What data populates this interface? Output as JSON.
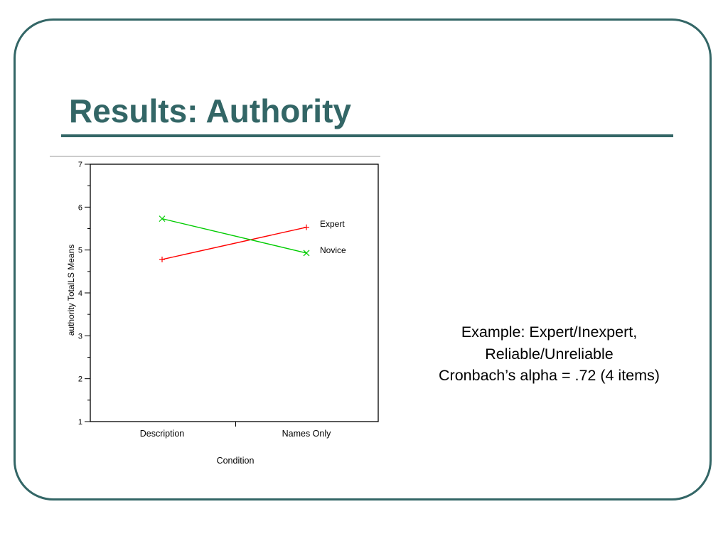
{
  "slide": {
    "title": "Results: Authority",
    "notes": [
      "Example: Expert/Inexpert,",
      "Reliable/Unreliable",
      "Cronbach’s alpha = .72 (4 items)"
    ],
    "colors": {
      "accent": "#336666",
      "frame": "#336666"
    }
  },
  "chart_data": {
    "type": "line",
    "title": "",
    "xlabel": "Condition",
    "ylabel": "authority TotalLS Means",
    "categories": [
      "Description",
      "Names Only"
    ],
    "ylim": [
      1,
      7
    ],
    "yticks": [
      "1",
      "2",
      "3",
      "4",
      "5",
      "6",
      "7"
    ],
    "grid": false,
    "legend": "inline labels at right end of lines",
    "series": [
      {
        "name": "Expert",
        "values": [
          4.78,
          5.53
        ],
        "color": "#ff0000",
        "marker": "plus"
      },
      {
        "name": "Novice",
        "values": [
          5.73,
          4.93
        ],
        "color": "#00cc00",
        "marker": "x"
      }
    ]
  }
}
